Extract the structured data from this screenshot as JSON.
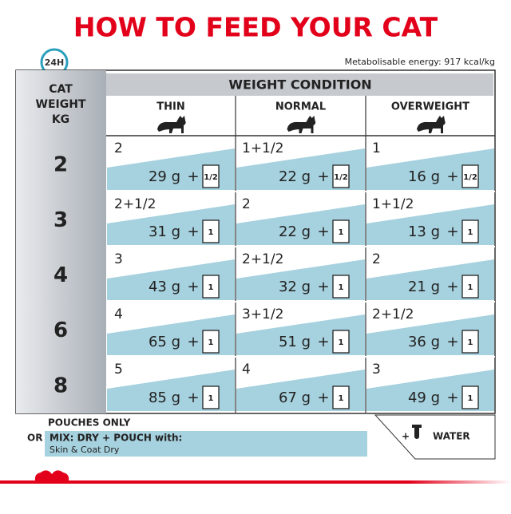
{
  "title": "HOW TO FEED YOUR CAT",
  "badge": "24H",
  "energy": "Metabolisable energy: 917 kcal/kg",
  "table": {
    "corner": [
      "CAT",
      "WEIGHT",
      "KG"
    ],
    "group_header": "WEIGHT CONDITION",
    "columns": [
      "THIN",
      "NORMAL",
      "OVERWEIGHT"
    ],
    "plus": "+",
    "rows": [
      {
        "weight": "2",
        "cells": [
          {
            "pouches": "2",
            "grams": "29 g",
            "icon": "1/2"
          },
          {
            "pouches": "1+1/2",
            "grams": "22 g",
            "icon": "1/2"
          },
          {
            "pouches": "1",
            "grams": "16 g",
            "icon": "1/2"
          }
        ]
      },
      {
        "weight": "3",
        "cells": [
          {
            "pouches": "2+1/2",
            "grams": "31 g",
            "icon": "1"
          },
          {
            "pouches": "2",
            "grams": "22 g",
            "icon": "1"
          },
          {
            "pouches": "1+1/2",
            "grams": "13 g",
            "icon": "1"
          }
        ]
      },
      {
        "weight": "4",
        "cells": [
          {
            "pouches": "3",
            "grams": "43 g",
            "icon": "1"
          },
          {
            "pouches": "2+1/2",
            "grams": "32 g",
            "icon": "1"
          },
          {
            "pouches": "2",
            "grams": "21 g",
            "icon": "1"
          }
        ]
      },
      {
        "weight": "6",
        "cells": [
          {
            "pouches": "4",
            "grams": "65 g",
            "icon": "1"
          },
          {
            "pouches": "3+1/2",
            "grams": "51 g",
            "icon": "1"
          },
          {
            "pouches": "2+1/2",
            "grams": "36 g",
            "icon": "1"
          }
        ]
      },
      {
        "weight": "8",
        "cells": [
          {
            "pouches": "5",
            "grams": "85 g",
            "icon": "1"
          },
          {
            "pouches": "4",
            "grams": "67 g",
            "icon": "1"
          },
          {
            "pouches": "3",
            "grams": "49 g",
            "icon": "1"
          }
        ]
      }
    ]
  },
  "footer": {
    "pouches_only": "POUCHES ONLY",
    "or": "OR",
    "mix": "MIX: DRY + POUCH with:",
    "product": "Skin & Coat Dry",
    "water_plus": "+",
    "water": "WATER"
  }
}
